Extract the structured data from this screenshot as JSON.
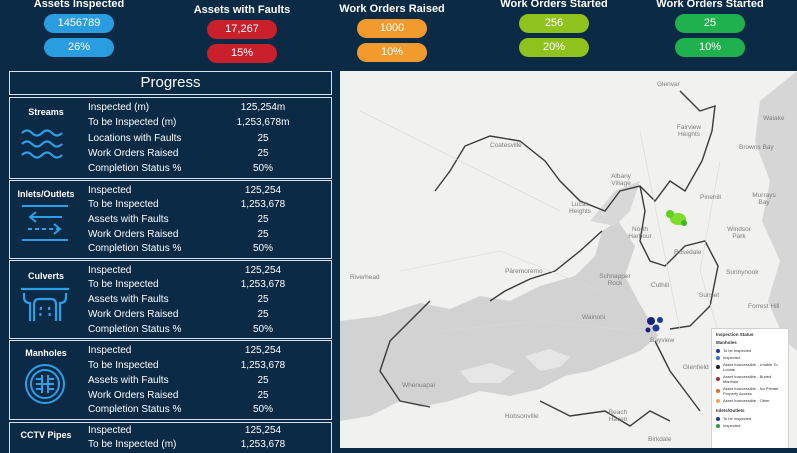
{
  "kpis": [
    {
      "title": "Assets Inspected",
      "value1": "1456789",
      "value2": "26%",
      "color": "blue"
    },
    {
      "title": "Assets with Faults",
      "value1": "17,267",
      "value2": "15%",
      "color": "red"
    },
    {
      "title": "Work Orders Raised",
      "value1": "1000",
      "value2": "10%",
      "color": "orange"
    },
    {
      "title": "Work Orders Started",
      "value1": "256",
      "value2": "20%",
      "color": "lime"
    },
    {
      "title": "Work Orders Started",
      "value1": "25",
      "value2": "10%",
      "color": "green"
    }
  ],
  "progress_title": "Progress",
  "sections": [
    {
      "name": "Streams",
      "icon": "waves-icon",
      "rows": [
        {
          "label": "Inspected (m)",
          "value": "125,254m"
        },
        {
          "label": "To be Inspected (m)",
          "value": "1,253,678m"
        },
        {
          "label": "Locations with Faults",
          "value": "25"
        },
        {
          "label": "Work Orders Raised",
          "value": "25"
        },
        {
          "label": "Completion Status %",
          "value": "50%"
        }
      ]
    },
    {
      "name": "Inlets/Outlets",
      "icon": "flow-arrows-icon",
      "rows": [
        {
          "label": "Inspected",
          "value": "125,254"
        },
        {
          "label": "To be Inspected",
          "value": "1,253,678"
        },
        {
          "label": "Assets with Faults",
          "value": "25"
        },
        {
          "label": "Work Orders Raised",
          "value": "25"
        },
        {
          "label": "Completion Status %",
          "value": "50%"
        }
      ]
    },
    {
      "name": "Culverts",
      "icon": "culvert-icon",
      "rows": [
        {
          "label": "Inspected",
          "value": "125,254"
        },
        {
          "label": "To be Inspected",
          "value": "1,253,678"
        },
        {
          "label": "Assets with Faults",
          "value": "25"
        },
        {
          "label": "Work Orders Raised",
          "value": "25"
        },
        {
          "label": "Completion Status %",
          "value": "50%"
        }
      ]
    },
    {
      "name": "Manholes",
      "icon": "manhole-icon",
      "rows": [
        {
          "label": "Inspected",
          "value": "125,254"
        },
        {
          "label": "To be Inspected",
          "value": "1,253,678"
        },
        {
          "label": "Assets with Faults",
          "value": "25"
        },
        {
          "label": "Work Orders Raised",
          "value": "25"
        },
        {
          "label": "Completion Status %",
          "value": "50%"
        }
      ]
    },
    {
      "name": "CCTV Pipes",
      "icon": "pipe-icon",
      "rows": [
        {
          "label": "Inspected",
          "value": "125,254"
        },
        {
          "label": "To be Inspected (m)",
          "value": "1,253,678"
        }
      ]
    }
  ],
  "map": {
    "places": [
      "Glenvar",
      "Fairview Heights",
      "Waiake",
      "Browns Bay",
      "Coatesville",
      "Albany Village",
      "Pinehill",
      "Murrays Bay",
      "Lucas Heights",
      "North Harbour",
      "Windsor Park",
      "Rosedale",
      "Sunnynook",
      "Riverhead",
      "Pāremoremo",
      "Schnapper Rock",
      "Cuthill",
      "Forrest Hill",
      "Sunset",
      "Wainoni",
      "Bayview",
      "Glenfield",
      "Whenuapai",
      "Hobsonville",
      "Beach Haven",
      "Birkdale"
    ],
    "legend": {
      "title": "Inspection Status",
      "groups": [
        {
          "title": "Manholes",
          "items": [
            {
              "label": "To be Inspected",
              "color": "#1f3a93"
            },
            {
              "label": "Inspected",
              "color": "#3b6fd1"
            },
            {
              "label": "Asset Inaccessible - Unable To Locate",
              "color": "#222222"
            },
            {
              "label": "Asset Inaccessible - Buried Manhole",
              "color": "#a0322b"
            },
            {
              "label": "Asset Inaccessible - No Private Property Access",
              "color": "#e56a1f"
            },
            {
              "label": "Asset Inaccessible - Other",
              "color": "#f0a65a"
            }
          ]
        },
        {
          "title": "Inlets/Outlets",
          "items": [
            {
              "label": "To be Inspected",
              "color": "#1f3a93"
            },
            {
              "label": "Inspected",
              "color": "#2a9d3a"
            }
          ]
        }
      ]
    }
  }
}
